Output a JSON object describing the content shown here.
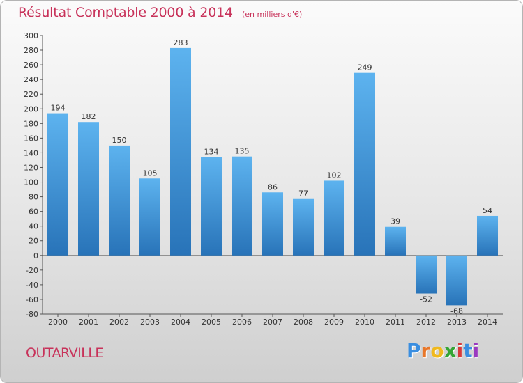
{
  "header": {
    "title": "Résultat Comptable 2000 à 2014",
    "subtitle": "(en milliers d'€)"
  },
  "footer": {
    "place": "OUTARVILLE",
    "brand_letters": [
      "P",
      "r",
      "o",
      "x",
      "i",
      "t",
      "i"
    ],
    "brand_colors": [
      "#3a8ee0",
      "#e8772a",
      "#f0b91e",
      "#35a535",
      "#d83a3a",
      "#3a8ee0",
      "#9a3ac0"
    ]
  },
  "chart_data": {
    "type": "bar",
    "title": "Résultat Comptable 2000 à 2014",
    "subtitle": "(en milliers d'€)",
    "categories": [
      "2000",
      "2001",
      "2002",
      "2003",
      "2004",
      "2005",
      "2006",
      "2007",
      "2008",
      "2009",
      "2010",
      "2011",
      "2012",
      "2013",
      "2014"
    ],
    "values": [
      194,
      182,
      150,
      105,
      283,
      134,
      135,
      86,
      77,
      102,
      249,
      39,
      -52,
      -68,
      54
    ],
    "value_labels": [
      "194",
      "182",
      "150",
      "105",
      "283",
      "134",
      "135",
      "86",
      "77",
      "102",
      "249",
      "39",
      "-52",
      "-68",
      "54"
    ],
    "ylim": [
      -80,
      300
    ],
    "yticks": [
      -80,
      -60,
      -40,
      -20,
      0,
      20,
      40,
      60,
      80,
      100,
      120,
      140,
      160,
      180,
      200,
      220,
      240,
      260,
      280,
      300
    ],
    "grid": false,
    "bar_color_light": "#5db3ef",
    "bar_color_dark": "#2873b8"
  }
}
